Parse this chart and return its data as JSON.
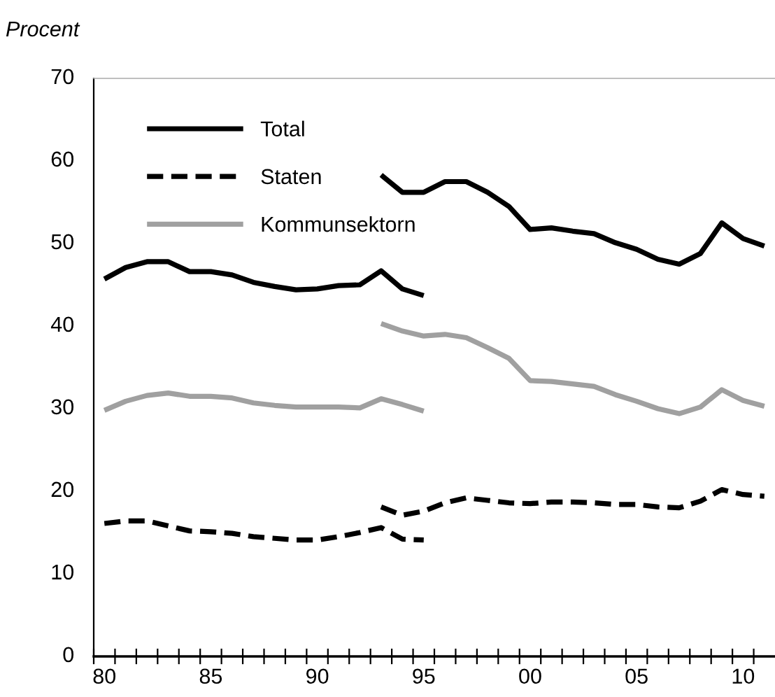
{
  "chart_data": {
    "type": "line",
    "ylabel": "Procent",
    "xlim": [
      1979.5,
      2011.5
    ],
    "ylim": [
      0,
      70
    ],
    "yticks": [
      0,
      10,
      20,
      30,
      40,
      50,
      60,
      70
    ],
    "xticks": [
      {
        "value": 1979.5,
        "label": null
      },
      {
        "value": 1980,
        "label": "80"
      },
      {
        "value": 1980.5,
        "label": null
      },
      {
        "value": 1981.5,
        "label": null
      },
      {
        "value": 1982.5,
        "label": null
      },
      {
        "value": 1983.5,
        "label": null
      },
      {
        "value": 1984.5,
        "label": null
      },
      {
        "value": 1985,
        "label": "85"
      },
      {
        "value": 1985.5,
        "label": null
      },
      {
        "value": 1986.5,
        "label": null
      },
      {
        "value": 1987.5,
        "label": null
      },
      {
        "value": 1988.5,
        "label": null
      },
      {
        "value": 1989.5,
        "label": null
      },
      {
        "value": 1990,
        "label": "90"
      },
      {
        "value": 1990.5,
        "label": null
      },
      {
        "value": 1991.5,
        "label": null
      },
      {
        "value": 1992.5,
        "label": null
      },
      {
        "value": 1993.5,
        "label": null
      },
      {
        "value": 1994.5,
        "label": null
      },
      {
        "value": 1995,
        "label": "95"
      },
      {
        "value": 1995.5,
        "label": null
      },
      {
        "value": 1996.5,
        "label": null
      },
      {
        "value": 1997.5,
        "label": null
      },
      {
        "value": 1998.5,
        "label": null
      },
      {
        "value": 1999.5,
        "label": null
      },
      {
        "value": 2000,
        "label": "00"
      },
      {
        "value": 2000.5,
        "label": null
      },
      {
        "value": 2001.5,
        "label": null
      },
      {
        "value": 2002.5,
        "label": null
      },
      {
        "value": 2003.5,
        "label": null
      },
      {
        "value": 2004.5,
        "label": null
      },
      {
        "value": 2005,
        "label": "05"
      },
      {
        "value": 2005.5,
        "label": null
      },
      {
        "value": 2006.5,
        "label": null
      },
      {
        "value": 2007.5,
        "label": null
      },
      {
        "value": 2008.5,
        "label": null
      },
      {
        "value": 2009.5,
        "label": null
      },
      {
        "value": 2010,
        "label": "10"
      },
      {
        "value": 2010.5,
        "label": null
      }
    ],
    "grid": false,
    "legend": "top left",
    "marker": "none",
    "series": [
      {
        "name": "Total",
        "color": "#000000",
        "line_style": "solid",
        "x": [
          1993,
          1994,
          1995,
          1996,
          1997,
          1998,
          1999,
          2000,
          2001,
          2002,
          2003,
          2004,
          2005,
          2006,
          2007,
          2008,
          2009,
          2010,
          2011
        ],
        "values": [
          58.3,
          56.2,
          56.2,
          57.5,
          57.5,
          56.2,
          54.5,
          51.7,
          51.9,
          51.5,
          51.2,
          50.1,
          49.3,
          48.1,
          47.5,
          48.8,
          52.5,
          50.6,
          49.7
        ]
      },
      {
        "name": "Staten",
        "color": "#000000",
        "line_style": "dashed",
        "x": [
          1993,
          1994,
          1995,
          1996,
          1997,
          1998,
          1999,
          2000,
          2001,
          2002,
          2003,
          2004,
          2005,
          2006,
          2007,
          2008,
          2009,
          2010,
          2011
        ],
        "values": [
          18.1,
          17.1,
          17.6,
          18.6,
          19.2,
          18.9,
          18.6,
          18.5,
          18.7,
          18.7,
          18.6,
          18.4,
          18.4,
          18.1,
          18.0,
          18.8,
          20.2,
          19.6,
          19.4
        ]
      },
      {
        "name": "Kommunsektorn",
        "color": "#a0a0a0",
        "line_style": "solid",
        "x": [
          1993,
          1994,
          1995,
          1996,
          1997,
          1998,
          1999,
          2000,
          2001,
          2002,
          2003,
          2004,
          2005,
          2006,
          2007,
          2008,
          2009,
          2010,
          2011
        ],
        "values": [
          40.3,
          39.4,
          38.8,
          39.0,
          38.6,
          37.4,
          36.1,
          33.4,
          33.3,
          33.0,
          32.7,
          31.7,
          30.9,
          30.0,
          29.4,
          30.2,
          32.3,
          31.0,
          30.3
        ]
      },
      {
        "color": "#000000",
        "line_style": "solid",
        "x": [
          1980,
          1981,
          1982,
          1983,
          1984,
          1985,
          1986,
          1987,
          1988,
          1989,
          1990,
          1991,
          1992,
          1993,
          1994,
          1995
        ],
        "values": [
          45.7,
          47.1,
          47.8,
          47.8,
          46.6,
          46.6,
          46.2,
          45.3,
          44.8,
          44.4,
          44.5,
          44.9,
          45.0,
          46.7,
          44.5,
          43.7
        ]
      },
      {
        "color": "#000000",
        "line_style": "dashed",
        "x": [
          1980,
          1981,
          1982,
          1983,
          1984,
          1985,
          1986,
          1987,
          1988,
          1989,
          1990,
          1991,
          1992,
          1993,
          1994,
          1995
        ],
        "values": [
          16.1,
          16.4,
          16.4,
          15.8,
          15.2,
          15.1,
          14.9,
          14.5,
          14.3,
          14.1,
          14.1,
          14.5,
          15.0,
          15.6,
          14.2,
          14.1
        ]
      },
      {
        "color": "#a0a0a0",
        "line_style": "solid",
        "x": [
          1980,
          1981,
          1982,
          1983,
          1984,
          1985,
          1986,
          1987,
          1988,
          1989,
          1990,
          1991,
          1992,
          1993,
          1994,
          1995
        ],
        "values": [
          29.8,
          30.9,
          31.6,
          31.9,
          31.5,
          31.5,
          31.3,
          30.7,
          30.4,
          30.2,
          30.2,
          30.2,
          30.1,
          31.2,
          30.5,
          29.7
        ]
      }
    ]
  }
}
